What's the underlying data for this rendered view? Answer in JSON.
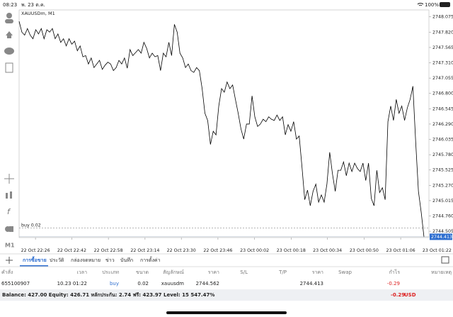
{
  "status_bar": {
    "time": "08:23",
    "date": "พ. 23 ต.ค.",
    "battery": "100%"
  },
  "toolbar": {
    "timeframe": "M1"
  },
  "chart_data": {
    "type": "line",
    "title": "XAUUSDm, M1",
    "color": "#000000",
    "values": [
      2748.0,
      2747.82,
      2747.77,
      2747.88,
      2747.77,
      2747.71,
      2747.86,
      2747.79,
      2747.88,
      2747.71,
      2747.86,
      2747.82,
      2747.88,
      2747.71,
      2747.79,
      2747.65,
      2747.71,
      2747.59,
      2747.71,
      2747.62,
      2747.67,
      2747.51,
      2747.59,
      2747.41,
      2747.43,
      2747.29,
      2747.39,
      2747.23,
      2747.29,
      2747.35,
      2747.2,
      2747.27,
      2747.32,
      2747.29,
      2747.18,
      2747.23,
      2747.35,
      2747.29,
      2747.39,
      2747.22,
      2747.53,
      2747.43,
      2747.48,
      2747.53,
      2747.47,
      2747.65,
      2747.55,
      2747.39,
      2747.47,
      2747.41,
      2747.43,
      2747.18,
      2747.47,
      2747.41,
      2747.65,
      2747.43,
      2747.95,
      2747.82,
      2747.47,
      2747.39,
      2747.23,
      2747.29,
      2747.18,
      2747.15,
      2747.23,
      2747.18,
      2746.88,
      2746.47,
      2746.35,
      2745.95,
      2746.17,
      2746.11,
      2746.59,
      2746.88,
      2746.82,
      2746.99,
      2746.88,
      2746.94,
      2746.7,
      2746.47,
      2746.21,
      2746.04,
      2746.29,
      2746.29,
      2746.76,
      2746.41,
      2746.25,
      2746.29,
      2746.37,
      2746.33,
      2746.41,
      2746.37,
      2746.35,
      2746.44,
      2746.35,
      2746.41,
      2746.11,
      2746.28,
      2746.17,
      2746.33,
      2746.04,
      2746.09,
      2745.58,
      2745.03,
      2745.19,
      2744.93,
      2745.17,
      2745.29,
      2744.99,
      2745.11,
      2744.99,
      2745.29,
      2745.82,
      2745.46,
      2745.17,
      2745.52,
      2745.52,
      2745.66,
      2745.43,
      2745.64,
      2745.5,
      2745.64,
      2745.55,
      2745.5,
      2745.64,
      2745.35,
      2745.64,
      2745.05,
      2744.93,
      2745.52,
      2745.15,
      2745.23,
      2745.03,
      2746.33,
      2746.59,
      2746.35,
      2746.7,
      2746.47,
      2746.59,
      2746.35,
      2746.56,
      2746.7,
      2746.92,
      2746.0,
      2745.17,
      2744.82,
      2744.41
    ],
    "xlim": [
      0,
      146
    ],
    "xticks": [
      {
        "value": 5.9,
        "label": "22 Oct 22:26"
      },
      {
        "value": 19.0,
        "label": "22 Oct 22:42"
      },
      {
        "value": 32.2,
        "label": "22 Oct 22:58"
      },
      {
        "value": 45.4,
        "label": "22 Oct 23:14"
      },
      {
        "value": 58.5,
        "label": "22 Oct 23:30"
      },
      {
        "value": 71.7,
        "label": "22 Oct 23:46"
      },
      {
        "value": 84.9,
        "label": "23 Oct 00:02"
      },
      {
        "value": 98.1,
        "label": "23 Oct 00:18"
      },
      {
        "value": 111.2,
        "label": "23 Oct 00:34"
      },
      {
        "value": 124.4,
        "label": "23 Oct 00:50"
      },
      {
        "value": 137.6,
        "label": "23 Oct 01:06"
      },
      {
        "value": 150.7,
        "label": "23 Oct 01:22"
      }
    ],
    "ylim": [
      2744.4,
      2748.19
    ],
    "yticks": [
      2748.075,
      {
        "value": 2747.82,
        "label": "2747.820"
      },
      2747.565,
      {
        "value": 2747.31,
        "label": "2747.310"
      },
      2747.055,
      {
        "value": 2746.8,
        "label": "2746.800"
      },
      2746.545,
      {
        "value": 2746.29,
        "label": "2746.290"
      },
      2746.035,
      {
        "value": 2745.78,
        "label": "2745.780"
      },
      2745.525,
      {
        "value": 2745.27,
        "label": "2745.270"
      },
      2745.015,
      {
        "value": 2744.76,
        "label": "2744.760"
      },
      2744.505
    ],
    "position_line": {
      "label": "buy 0.02",
      "value": 2744.562
    },
    "current_price": 2744.413
  },
  "tabs": [
    "การซื้อขาย",
    "ประวัติ",
    "กล่องจดหมาย",
    "ข่าว",
    "บันทึก",
    "การตั้งค่า"
  ],
  "table": {
    "columns": [
      "คำสั่ง",
      "เวลา",
      "ประเภท",
      "ขนาด",
      "สัญลักษณ์",
      "ราคา",
      "S/L",
      "T/P",
      "ราคา",
      "Swap",
      "กำไร",
      "หมายเหตุ"
    ],
    "rows": [
      {
        "order": "655100907",
        "time": "10.23 01:22",
        "type": "buy",
        "size": "0.02",
        "symbol": "xauusdm",
        "open_price": "2744.562",
        "price": "2744.413",
        "profit": "-0.29"
      }
    ]
  },
  "footer": {
    "summary": "Balance: 427.00 Equity: 426.71 หลักประกัน: 2.74 ฟรี: 423.97 Level: 15 547.47%",
    "profit": "-0.29",
    "currency": "USD"
  }
}
